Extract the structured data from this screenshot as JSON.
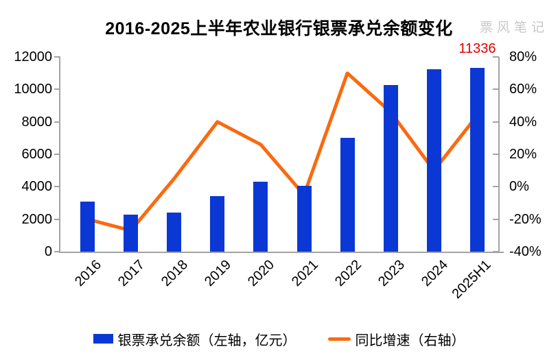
{
  "title": "2016-2025上半年农业银行银票承兑余额变化",
  "watermark": "票风笔记",
  "legend": [
    {
      "label": "银票承兑余额（左轴，亿元）",
      "type": "bar"
    },
    {
      "label": "同比增速（右轴）",
      "type": "line"
    }
  ],
  "colors": {
    "bar": "#0b38d4",
    "line": "#fb6a0e",
    "annotation": "#e00000",
    "axis": "#a3a3a3",
    "watermark": "#c8c8c8"
  },
  "chart_data": {
    "type": "bar+line combo",
    "title": "2016-2025上半年农业银行银票承兑余额变化",
    "categories": [
      "2016",
      "2017",
      "2018",
      "2019",
      "2020",
      "2021",
      "2022",
      "2023",
      "2024",
      "2025H1"
    ],
    "series": [
      {
        "name": "银票承兑余额（左轴，亿元）",
        "type": "bar",
        "axis": "left",
        "unit": "亿元",
        "color": "#0b38d4",
        "values": [
          3100,
          2270,
          2400,
          3420,
          4300,
          4050,
          7000,
          10250,
          11250,
          11336
        ]
      },
      {
        "name": "同比增速（右轴）",
        "type": "line",
        "axis": "right",
        "unit": "%",
        "color": "#fb6a0e",
        "values": [
          -20,
          -27,
          5,
          40,
          26,
          -5,
          70,
          46,
          10,
          44
        ]
      }
    ],
    "left_axis": {
      "min": 0,
      "max": 12000,
      "step": 2000,
      "ticks": [
        "12000",
        "10000",
        "8000",
        "6000",
        "4000",
        "2000",
        "0"
      ]
    },
    "right_axis": {
      "min": -40,
      "max": 80,
      "step": 20,
      "ticks": [
        "80%",
        "60%",
        "40%",
        "20%",
        "0%",
        "-20%",
        "-40%"
      ]
    },
    "annotation": {
      "text": "11336",
      "category": "2025H1",
      "series": "银票承兑余额"
    },
    "grid": false,
    "legend_position": "bottom"
  }
}
